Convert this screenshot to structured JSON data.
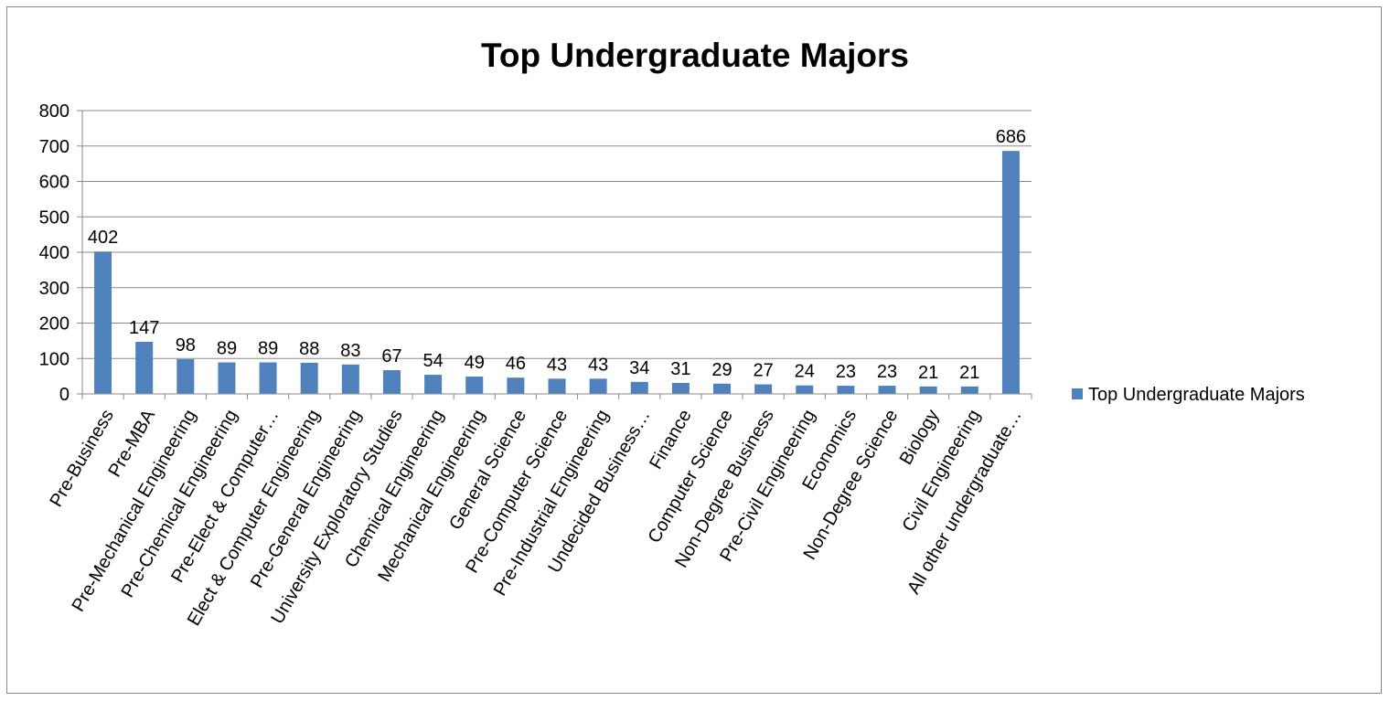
{
  "chart_data": {
    "type": "bar",
    "title": "Top Undergraduate Majors",
    "xlabel": "",
    "ylabel": "",
    "ylim": [
      0,
      800
    ],
    "yticks": [
      0,
      100,
      200,
      300,
      400,
      500,
      600,
      700,
      800
    ],
    "grid": true,
    "legend_position": "right",
    "categories": [
      "Pre-Business",
      "Pre-MBA",
      "Pre-Mechanical Engineering",
      "Pre-Chemical Engineering",
      "Pre-Elect & Computer…",
      "Elect & Computer Engineering",
      "Pre-General Engineering",
      "University Exploratory Studies",
      "Chemical Engineering",
      "Mechanical Engineering",
      "General Science",
      "Pre-Computer Science",
      "Pre-Industrial Engineering",
      "Undecided Business…",
      "Finance",
      "Computer Science",
      "Non-Degree Business",
      "Pre-Civil Engineering",
      "Economics",
      "Non-Degree Science",
      "Biology",
      "Civil Engineering",
      "All other undergraduate…"
    ],
    "series": [
      {
        "name": "Top Undergraduate Majors",
        "color": "#4f81bd",
        "values": [
          402,
          147,
          98,
          89,
          89,
          88,
          83,
          67,
          54,
          49,
          46,
          43,
          43,
          34,
          31,
          29,
          27,
          24,
          23,
          23,
          21,
          21,
          686
        ]
      }
    ]
  }
}
